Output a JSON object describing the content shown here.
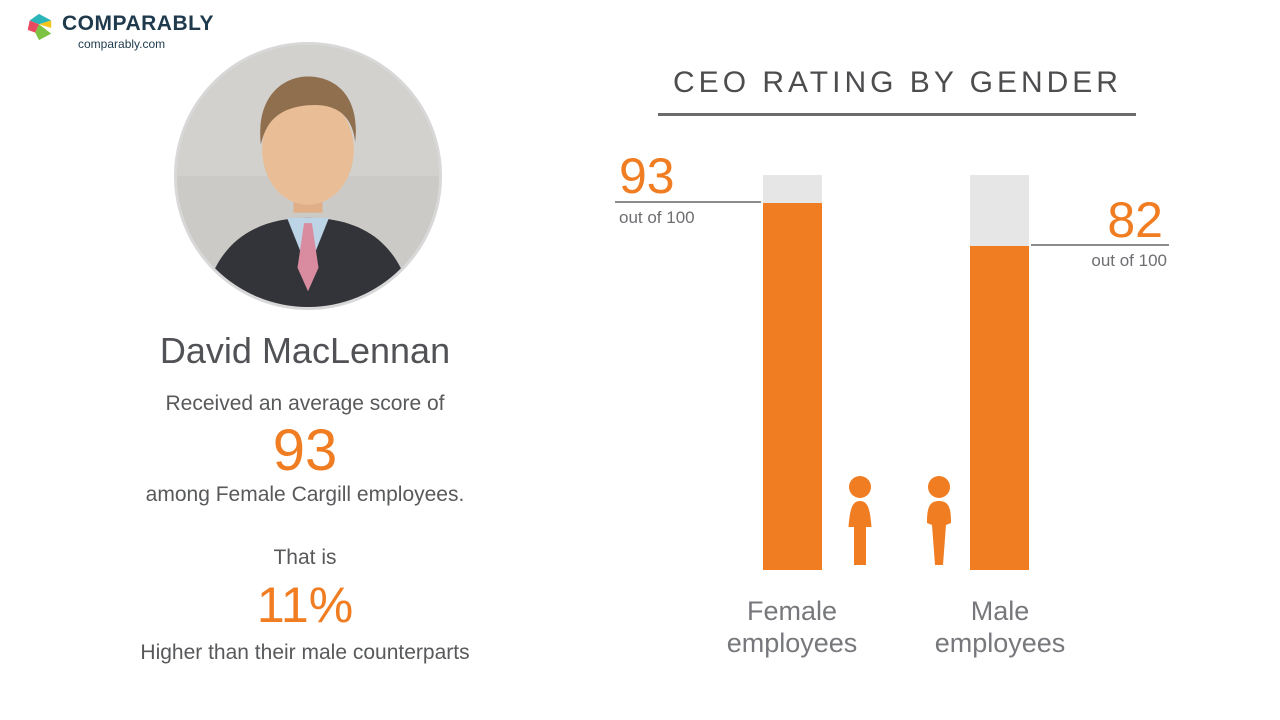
{
  "brand": {
    "name": "COMPARABLY",
    "domain": "comparably.com"
  },
  "profile": {
    "name": "David MacLennan",
    "score_intro": "Received an average score of",
    "score": "93",
    "score_context": "among Female Cargill employees.",
    "comparison_intro": "That is",
    "comparison_value": "11%",
    "comparison_context": "Higher than their male counterparts"
  },
  "icons": {
    "logo": "comparably-logo-mark",
    "female_figure": "female-person-pictogram",
    "male_figure": "male-person-pictogram",
    "portrait": "ceo-headshot-photo"
  },
  "chart_data": {
    "type": "bar",
    "title": "CEO RATING BY GENDER",
    "categories": [
      "Female employees",
      "Male employees"
    ],
    "values": [
      93,
      82
    ],
    "ylim": [
      0,
      100
    ],
    "value_caption": "out of 100",
    "grid": false,
    "legend": "none",
    "colors": {
      "bar": "#F07D22",
      "track": "#E6E6E6",
      "accent_text": "#F07D22",
      "label_text": "#77787B"
    }
  }
}
